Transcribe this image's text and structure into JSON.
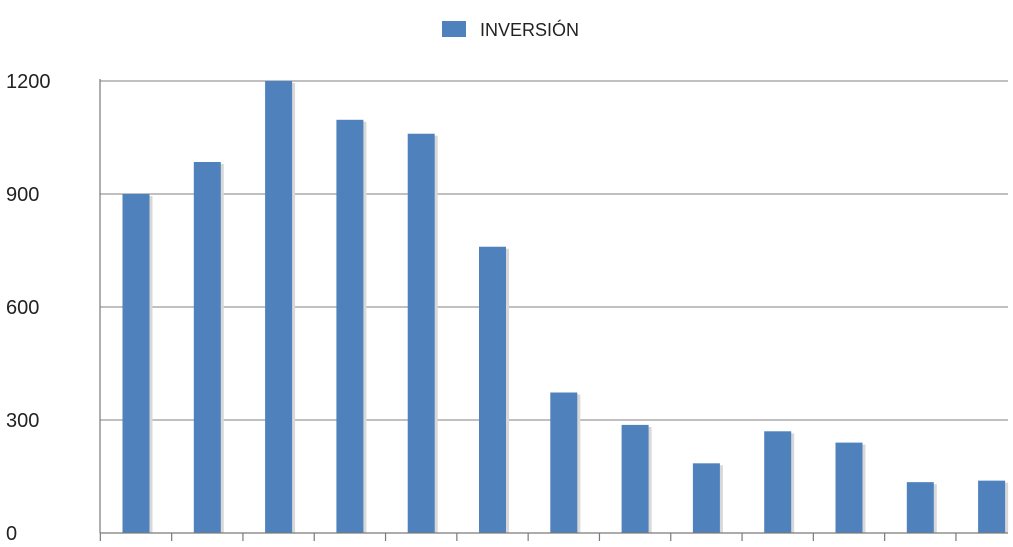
{
  "chart_data": {
    "type": "bar",
    "series": [
      {
        "name": "INVERSIÓN",
        "color": "#4f81bd",
        "values": [
          900,
          985,
          1200,
          1097,
          1060,
          760,
          373,
          287,
          185,
          270,
          240,
          135,
          139
        ]
      }
    ],
    "categories": [
      "",
      "",
      "",
      "",
      "",
      "",
      "",
      "",
      "",
      "",
      "",
      "",
      ""
    ],
    "ylim": [
      0,
      1200
    ],
    "yticks": [
      "0",
      "300",
      "600",
      "900",
      "1200"
    ],
    "grid": true,
    "legend_position": "top-center",
    "title": "",
    "xlabel": "",
    "ylabel": ""
  }
}
